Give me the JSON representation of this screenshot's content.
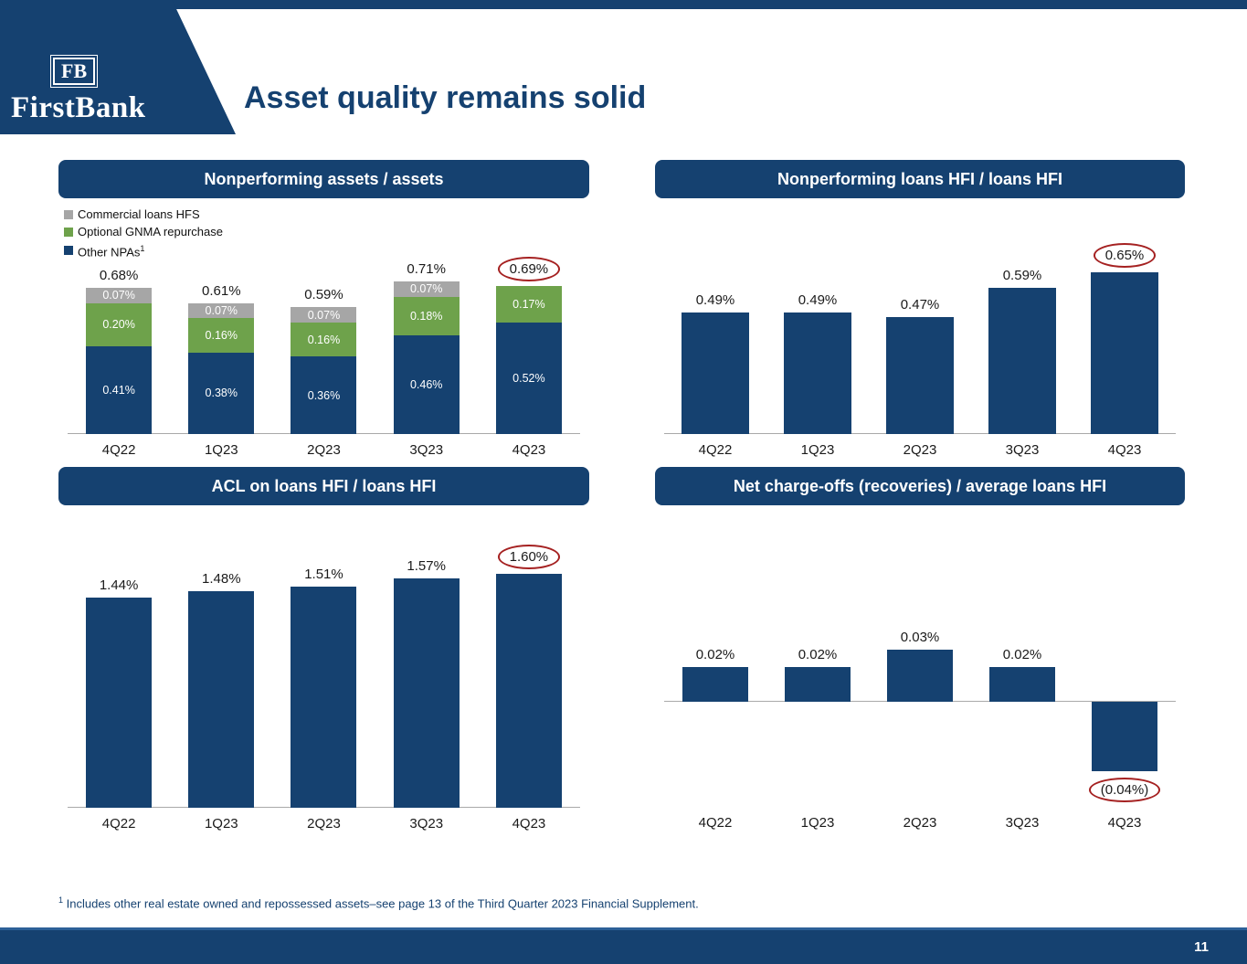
{
  "page": {
    "title": "Asset quality remains solid",
    "page_number": "11"
  },
  "logo": {
    "monogram": "FB",
    "wordmark": "FirstBank"
  },
  "footnote": {
    "sup": "1",
    "text": "Includes other real estate owned and repossessed assets–see page 13 of the Third Quarter 2023 Financial Supplement."
  },
  "colors": {
    "navy": "#154170",
    "green": "#6ea24b",
    "gray": "#a6a6a6",
    "red": "#a52121"
  },
  "chart_data": [
    {
      "id": "npa",
      "type": "stacked-bar",
      "title": "Nonperforming assets / assets",
      "categories": [
        "4Q22",
        "1Q23",
        "2Q23",
        "3Q23",
        "4Q23"
      ],
      "series": [
        {
          "name": "Commercial loans HFS",
          "color_key": "gray",
          "values": [
            0.07,
            0.07,
            0.07,
            0.07,
            0
          ],
          "labels": [
            "0.07%",
            "0.07%",
            "0.07%",
            "0.07%",
            ""
          ]
        },
        {
          "name": "Optional GNMA repurchase",
          "color_key": "green",
          "values": [
            0.2,
            0.16,
            0.16,
            0.18,
            0.17
          ],
          "labels": [
            "0.20%",
            "0.16%",
            "0.16%",
            "0.18%",
            "0.17%"
          ]
        },
        {
          "name": "Other NPAs",
          "sup": "1",
          "color_key": "navy",
          "values": [
            0.41,
            0.38,
            0.36,
            0.46,
            0.52
          ],
          "labels": [
            "0.41%",
            "0.38%",
            "0.36%",
            "0.46%",
            "0.52%"
          ]
        }
      ],
      "totals": [
        "0.68%",
        "0.61%",
        "0.59%",
        "0.71%",
        "0.69%"
      ],
      "circled_index": 4,
      "ylim": [
        0,
        0.8
      ]
    },
    {
      "id": "npl",
      "type": "bar",
      "title": "Nonperforming loans HFI / loans HFI",
      "categories": [
        "4Q22",
        "1Q23",
        "2Q23",
        "3Q23",
        "4Q23"
      ],
      "values": [
        0.49,
        0.49,
        0.47,
        0.59,
        0.65
      ],
      "labels": [
        "0.49%",
        "0.49%",
        "0.47%",
        "0.59%",
        "0.65%"
      ],
      "circled_index": 4,
      "ylim": [
        0,
        0.8
      ]
    },
    {
      "id": "acl",
      "type": "bar",
      "title": "ACL on loans HFI / loans HFI",
      "categories": [
        "4Q22",
        "1Q23",
        "2Q23",
        "3Q23",
        "4Q23"
      ],
      "values": [
        1.44,
        1.48,
        1.51,
        1.57,
        1.6
      ],
      "labels": [
        "1.44%",
        "1.48%",
        "1.51%",
        "1.57%",
        "1.60%"
      ],
      "circled_index": 4,
      "ylim": [
        0,
        1.8
      ]
    },
    {
      "id": "nco",
      "type": "bar",
      "title": "Net charge-offs (recoveries) / average loans HFI",
      "categories": [
        "4Q22",
        "1Q23",
        "2Q23",
        "3Q23",
        "4Q23"
      ],
      "values": [
        0.02,
        0.02,
        0.03,
        0.02,
        -0.04
      ],
      "labels": [
        "0.02%",
        "0.02%",
        "0.03%",
        "0.02%",
        "(0.04%)"
      ],
      "circled_index": 4,
      "ylim": [
        -0.06,
        0.06
      ]
    }
  ]
}
